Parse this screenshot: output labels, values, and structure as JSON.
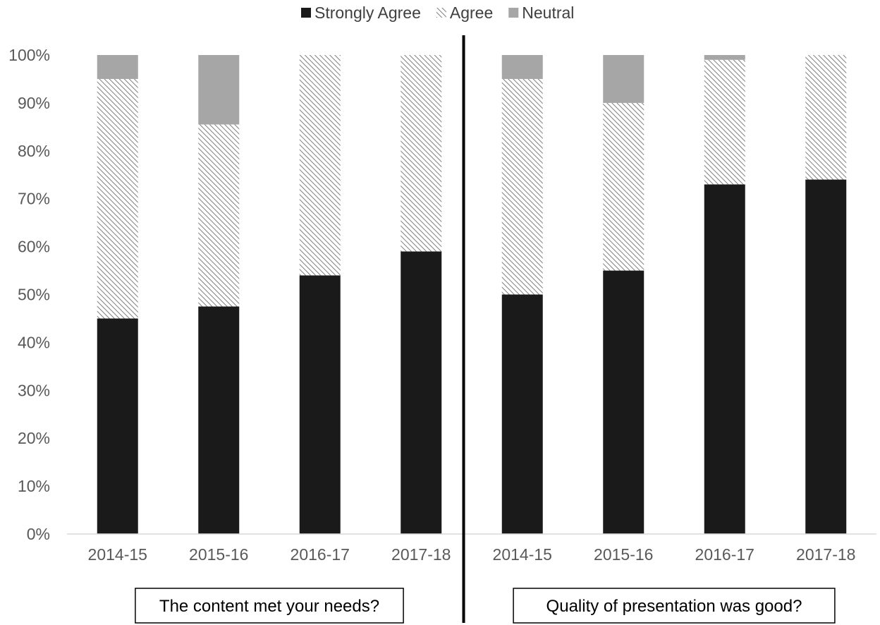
{
  "chart_data": {
    "type": "bar",
    "stacked": true,
    "percent_stacked": true,
    "categories": [
      "2014-15",
      "2015-16",
      "2016-17",
      "2017-18",
      "2014-15",
      "2015-16",
      "2016-17",
      "2017-18"
    ],
    "groups": [
      {
        "label": "The content met your needs?",
        "category_indices": [
          0,
          1,
          2,
          3
        ]
      },
      {
        "label": "Quality of presentation was good?",
        "category_indices": [
          4,
          5,
          6,
          7
        ]
      }
    ],
    "series": [
      {
        "name": "Strongly Agree",
        "color": "#1a1a1a",
        "pattern": "solid",
        "values": [
          45,
          47.5,
          54,
          59,
          50,
          55,
          73,
          74
        ]
      },
      {
        "name": "Agree",
        "color": "#808080",
        "pattern": "diagonal-hatch",
        "values": [
          50,
          38,
          46,
          41,
          45,
          35,
          26,
          26
        ]
      },
      {
        "name": "Neutral",
        "color": "#a6a6a6",
        "pattern": "solid",
        "values": [
          5,
          14.5,
          0,
          0,
          5,
          10,
          1,
          0
        ]
      }
    ],
    "y_ticks": [
      "0%",
      "10%",
      "20%",
      "30%",
      "40%",
      "50%",
      "60%",
      "70%",
      "80%",
      "90%",
      "100%"
    ],
    "ylim": [
      0,
      100
    ],
    "grid": false,
    "legend_position": "top-center"
  }
}
